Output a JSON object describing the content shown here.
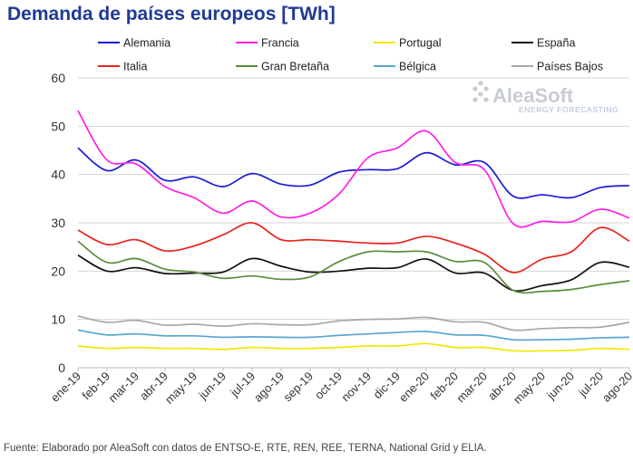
{
  "chart_data": {
    "type": "line",
    "title": "Demanda de países europeos [TWh]",
    "xlabel": "",
    "ylabel": "",
    "ylim": [
      0,
      60
    ],
    "yticks": [
      0,
      10,
      20,
      30,
      40,
      50,
      60
    ],
    "grid": true,
    "legend_position": "top",
    "categories": [
      "ene-19",
      "feb-19",
      "mar-19",
      "abr-19",
      "may-19",
      "jun-19",
      "jul-19",
      "ago-19",
      "sep-19",
      "oct-19",
      "nov-19",
      "dic-19",
      "ene-20",
      "feb-20",
      "mar-20",
      "abr-20",
      "may-20",
      "jun-20",
      "jul-20",
      "ago-20"
    ],
    "series": [
      {
        "name": "Alemania",
        "color": "#1a1ad6",
        "values": [
          45.5,
          40.8,
          43.0,
          38.8,
          39.5,
          37.5,
          40.2,
          38.0,
          37.8,
          40.5,
          41.0,
          41.2,
          44.5,
          42.0,
          42.5,
          35.5,
          35.8,
          35.2,
          37.3,
          37.7
        ]
      },
      {
        "name": "Francia",
        "color": "#ff1ee6",
        "values": [
          53.2,
          43.0,
          42.2,
          37.5,
          35.2,
          32.0,
          34.5,
          31.2,
          32.0,
          36.0,
          43.5,
          45.5,
          49.0,
          42.5,
          41.0,
          29.8,
          30.3,
          30.2,
          32.8,
          31.0
        ]
      },
      {
        "name": "Portugal",
        "color": "#f0e800",
        "values": [
          4.5,
          4.0,
          4.2,
          4.0,
          4.0,
          3.8,
          4.2,
          4.0,
          4.0,
          4.2,
          4.5,
          4.5,
          5.0,
          4.2,
          4.2,
          3.5,
          3.5,
          3.6,
          4.0,
          3.8
        ]
      },
      {
        "name": "España",
        "color": "#111111",
        "values": [
          23.3,
          20.0,
          20.7,
          19.5,
          19.6,
          19.8,
          22.6,
          21.0,
          19.8,
          20.0,
          20.6,
          20.7,
          22.5,
          19.6,
          19.6,
          16.0,
          17.0,
          18.2,
          21.8,
          20.8
        ]
      },
      {
        "name": "Italia",
        "color": "#e8241c",
        "values": [
          28.5,
          25.5,
          26.5,
          24.2,
          25.2,
          27.5,
          30.0,
          26.5,
          26.5,
          26.2,
          25.8,
          25.8,
          27.2,
          25.8,
          23.5,
          19.7,
          22.5,
          24.0,
          29.0,
          26.2
        ]
      },
      {
        "name": "Gran Bretaña",
        "color": "#5a8c3c",
        "values": [
          26.2,
          21.8,
          22.6,
          20.4,
          19.8,
          18.5,
          19.0,
          18.3,
          18.8,
          22.0,
          24.0,
          24.0,
          24.0,
          22.0,
          21.8,
          16.0,
          15.8,
          16.2,
          17.2,
          18.0
        ]
      },
      {
        "name": "Bélgica",
        "color": "#5aa6d2",
        "values": [
          7.8,
          6.8,
          7.0,
          6.6,
          6.6,
          6.3,
          6.4,
          6.3,
          6.3,
          6.7,
          7.0,
          7.3,
          7.5,
          6.8,
          6.7,
          5.8,
          5.8,
          5.9,
          6.2,
          6.3
        ]
      },
      {
        "name": "Países Bajos",
        "color": "#a8a8a8",
        "values": [
          10.7,
          9.4,
          9.8,
          8.8,
          9.0,
          8.6,
          9.1,
          8.9,
          8.9,
          9.7,
          10.0,
          10.1,
          10.4,
          9.5,
          9.4,
          7.8,
          8.1,
          8.3,
          8.4,
          9.4
        ]
      }
    ]
  },
  "logo": {
    "main": "AleaSoft",
    "sub": "ENERGY FORECASTING"
  },
  "source_note": "Fuente: Elaborado por AleaSoft con datos de ENTSO-E, RTE, REN, REE, TERNA, National Grid y ELIA."
}
